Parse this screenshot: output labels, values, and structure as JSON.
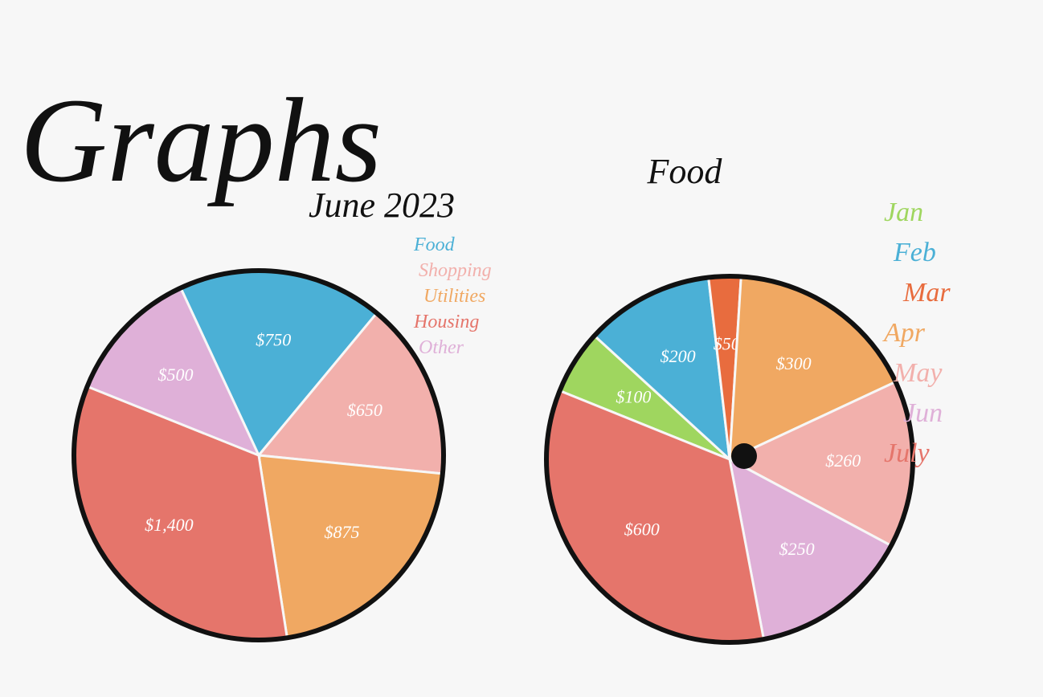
{
  "title": "Graphs",
  "chart_data": [
    {
      "type": "pie",
      "title": "June 2023",
      "categories": [
        "Food",
        "Shopping",
        "Utilities",
        "Housing",
        "Other"
      ],
      "values": [
        750,
        650,
        875,
        1400,
        500
      ],
      "value_labels": [
        "$750",
        "$650",
        "$875",
        "$1,400",
        "$500"
      ],
      "colors": [
        "#4bb0d6",
        "#f2b0ac",
        "#f0a862",
        "#e5756b",
        "#dfb0d8"
      ]
    },
    {
      "type": "pie",
      "title": "Food",
      "categories": [
        "Jan",
        "Feb",
        "Mar",
        "Apr",
        "May",
        "Jun",
        "July"
      ],
      "values": [
        100,
        200,
        50,
        300,
        260,
        250,
        600
      ],
      "value_labels": [
        "$100",
        "$200",
        "$50",
        "$300",
        "$260",
        "$250",
        "$600"
      ],
      "colors": [
        "#9fd65f",
        "#4bb0d6",
        "#e86c3e",
        "#f0a862",
        "#f2b0ac",
        "#dfb0d8",
        "#e5756b"
      ]
    }
  ]
}
